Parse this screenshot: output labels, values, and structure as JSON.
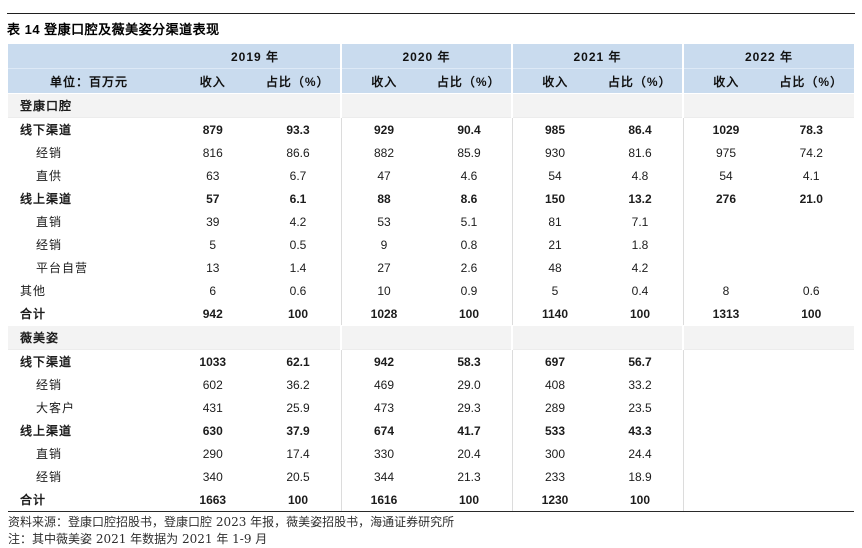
{
  "title": "表 14 登康口腔及薇美姿分渠道表现",
  "unit_label": "单位：百万元",
  "years": [
    "2019 年",
    "2020 年",
    "2021 年",
    "2022 年"
  ],
  "col_headers": {
    "revenue": "收入",
    "share": "占比（%）"
  },
  "sections": [
    {
      "name": "登康口腔",
      "rows": [
        {
          "label": "线下渠道",
          "bold": true,
          "indent": false,
          "values": [
            "879",
            "93.3",
            "929",
            "90.4",
            "985",
            "86.4",
            "1029",
            "78.3"
          ]
        },
        {
          "label": "经销",
          "bold": false,
          "indent": true,
          "values": [
            "816",
            "86.6",
            "882",
            "85.9",
            "930",
            "81.6",
            "975",
            "74.2"
          ]
        },
        {
          "label": "直供",
          "bold": false,
          "indent": true,
          "values": [
            "63",
            "6.7",
            "47",
            "4.6",
            "54",
            "4.8",
            "54",
            "4.1"
          ]
        },
        {
          "label": "线上渠道",
          "bold": true,
          "indent": false,
          "values": [
            "57",
            "6.1",
            "88",
            "8.6",
            "150",
            "13.2",
            "276",
            "21.0"
          ]
        },
        {
          "label": "直销",
          "bold": false,
          "indent": true,
          "values": [
            "39",
            "4.2",
            "53",
            "5.1",
            "81",
            "7.1",
            "",
            ""
          ]
        },
        {
          "label": "经销",
          "bold": false,
          "indent": true,
          "values": [
            "5",
            "0.5",
            "9",
            "0.8",
            "21",
            "1.8",
            "",
            ""
          ]
        },
        {
          "label": "平台自营",
          "bold": false,
          "indent": true,
          "values": [
            "13",
            "1.4",
            "27",
            "2.6",
            "48",
            "4.2",
            "",
            ""
          ]
        },
        {
          "label": "其他",
          "bold": false,
          "indent": false,
          "values": [
            "6",
            "0.6",
            "10",
            "0.9",
            "5",
            "0.4",
            "8",
            "0.6"
          ]
        },
        {
          "label": "合计",
          "bold": true,
          "indent": false,
          "values": [
            "942",
            "100",
            "1028",
            "100",
            "1140",
            "100",
            "1313",
            "100"
          ]
        }
      ]
    },
    {
      "name": "薇美姿",
      "rows": [
        {
          "label": "线下渠道",
          "bold": true,
          "indent": false,
          "values": [
            "1033",
            "62.1",
            "942",
            "58.3",
            "697",
            "56.7",
            "",
            ""
          ]
        },
        {
          "label": "经销",
          "bold": false,
          "indent": true,
          "values": [
            "602",
            "36.2",
            "469",
            "29.0",
            "408",
            "33.2",
            "",
            ""
          ]
        },
        {
          "label": "大客户",
          "bold": false,
          "indent": true,
          "values": [
            "431",
            "25.9",
            "473",
            "29.3",
            "289",
            "23.5",
            "",
            ""
          ]
        },
        {
          "label": "线上渠道",
          "bold": true,
          "indent": false,
          "values": [
            "630",
            "37.9",
            "674",
            "41.7",
            "533",
            "43.3",
            "",
            ""
          ]
        },
        {
          "label": "直销",
          "bold": false,
          "indent": true,
          "values": [
            "290",
            "17.4",
            "330",
            "20.4",
            "300",
            "24.4",
            "",
            ""
          ]
        },
        {
          "label": "经销",
          "bold": false,
          "indent": true,
          "values": [
            "340",
            "20.5",
            "344",
            "21.3",
            "233",
            "18.9",
            "",
            ""
          ]
        },
        {
          "label": "合计",
          "bold": true,
          "indent": false,
          "values": [
            "1663",
            "100",
            "1616",
            "100",
            "1230",
            "100",
            "",
            ""
          ]
        }
      ]
    }
  ],
  "footer": {
    "source": "资料来源：登康口腔招股书，登康口腔 2023 年报，薇美姿招股书，海通证券研究所",
    "note": "注：其中薇美姿 2021 年数据为 2021 年 1-9 月"
  },
  "colors": {
    "header_bg": "#c9dbee",
    "section_bg": "#f3f3f3",
    "group_separator": "#dcdcdc",
    "rule": "#1f1f1f"
  }
}
